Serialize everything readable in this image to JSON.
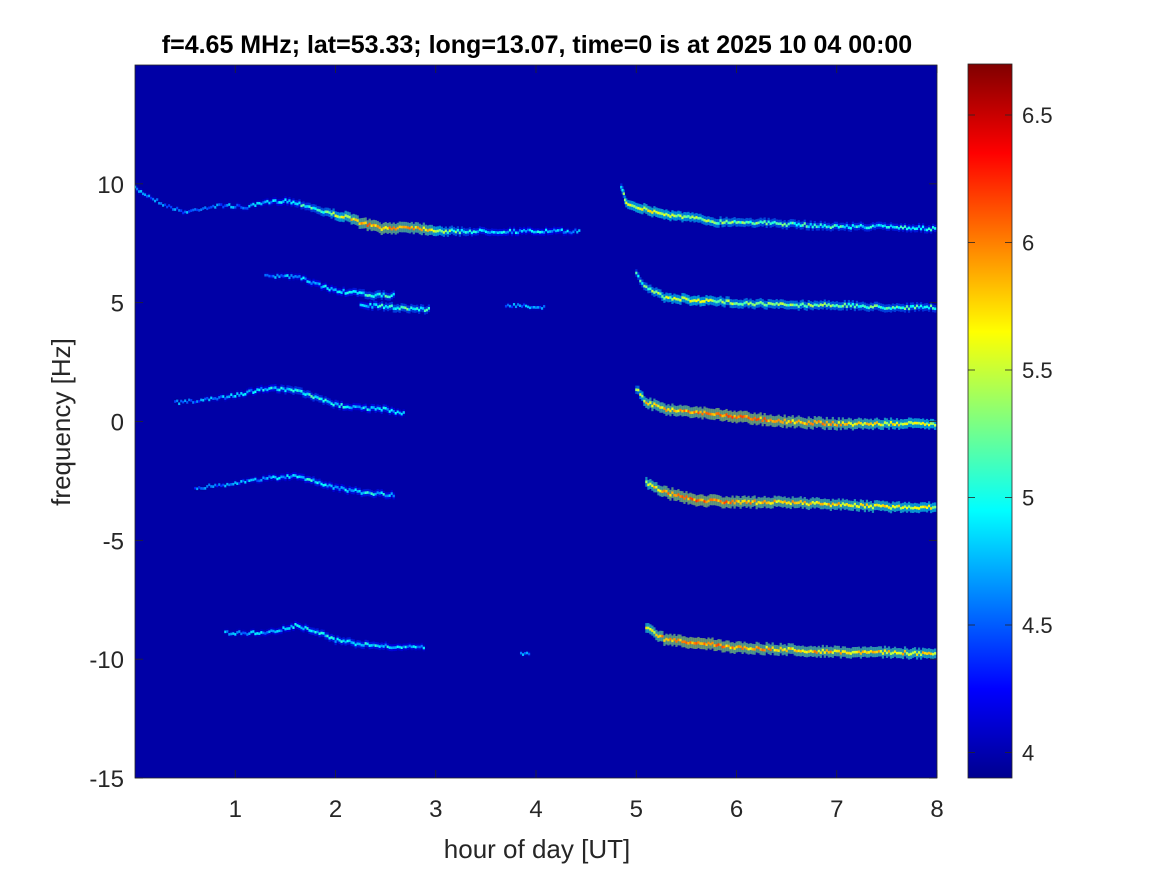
{
  "chart_data": {
    "type": "heatmap",
    "title": "f=4.65 MHz;  lat=53.33; long=13.07, time=0 is at 2025 10 04 00:00",
    "xlabel": "hour of day [UT]",
    "ylabel": "frequency [Hz]",
    "xlim": [
      0,
      8
    ],
    "ylim": [
      -15,
      15
    ],
    "xticks": [
      1,
      2,
      3,
      4,
      5,
      6,
      7,
      8
    ],
    "yticks": [
      -15,
      -10,
      -5,
      0,
      5,
      10
    ],
    "colorbar": {
      "clim": [
        3.9,
        6.7
      ],
      "ticks": [
        4,
        4.5,
        5,
        5.5,
        6,
        6.5
      ],
      "colormap": "jet",
      "background_level": 3.95,
      "background_color": "#0000a6"
    },
    "grid": false,
    "traces": [
      {
        "name": "upper trace",
        "points": [
          [
            0.0,
            9.8,
            4.7
          ],
          [
            0.3,
            9.1,
            4.5
          ],
          [
            0.5,
            8.8,
            4.6
          ],
          [
            0.7,
            9.0,
            4.5
          ],
          [
            0.9,
            9.1,
            4.6
          ],
          [
            1.1,
            9.0,
            4.6
          ],
          [
            1.3,
            9.2,
            4.7
          ],
          [
            1.5,
            9.3,
            4.8
          ],
          [
            1.7,
            9.1,
            5.0
          ],
          [
            1.9,
            8.8,
            5.2
          ],
          [
            2.1,
            8.6,
            5.6
          ],
          [
            2.3,
            8.3,
            5.9
          ],
          [
            2.5,
            8.1,
            5.9
          ],
          [
            2.7,
            8.2,
            5.8
          ],
          [
            2.9,
            8.1,
            5.8
          ],
          [
            3.1,
            8.0,
            5.3
          ],
          [
            3.4,
            8.0,
            4.9
          ],
          [
            3.8,
            8.0,
            4.8
          ],
          [
            4.2,
            8.0,
            4.8
          ],
          [
            4.45,
            8.0,
            4.6
          ]
        ]
      },
      {
        "name": "upper trace (post 05 UT)",
        "points": [
          [
            4.85,
            9.9,
            5.0
          ],
          [
            4.9,
            9.2,
            5.4
          ],
          [
            5.1,
            8.9,
            5.6
          ],
          [
            5.3,
            8.7,
            5.5
          ],
          [
            5.5,
            8.6,
            5.4
          ],
          [
            5.8,
            8.4,
            5.3
          ],
          [
            6.1,
            8.4,
            5.2
          ],
          [
            6.5,
            8.3,
            5.1
          ],
          [
            7.0,
            8.2,
            5.0
          ],
          [
            7.5,
            8.2,
            4.9
          ],
          [
            8.0,
            8.1,
            4.9
          ]
        ]
      },
      {
        "name": "5 Hz trace",
        "points": [
          [
            1.3,
            6.1,
            4.6
          ],
          [
            1.6,
            6.1,
            4.7
          ],
          [
            1.8,
            5.8,
            4.8
          ],
          [
            2.0,
            5.5,
            4.8
          ],
          [
            2.2,
            5.4,
            4.9
          ],
          [
            2.4,
            5.3,
            5.1
          ],
          [
            2.6,
            5.3,
            4.9
          ]
        ]
      },
      {
        "name": "5 Hz lower branch",
        "points": [
          [
            2.25,
            4.9,
            4.8
          ],
          [
            2.6,
            4.8,
            5.1
          ],
          [
            2.95,
            4.7,
            5.0
          ]
        ]
      },
      {
        "name": "5 Hz fragment",
        "points": [
          [
            3.7,
            4.9,
            4.6
          ],
          [
            4.1,
            4.8,
            4.6
          ]
        ]
      },
      {
        "name": "5 Hz trace (post 05 UT)",
        "points": [
          [
            5.0,
            6.2,
            5.0
          ],
          [
            5.1,
            5.6,
            5.2
          ],
          [
            5.3,
            5.2,
            5.4
          ],
          [
            5.6,
            5.1,
            5.5
          ],
          [
            6.0,
            5.0,
            5.3
          ],
          [
            6.5,
            4.9,
            5.3
          ],
          [
            7.0,
            4.9,
            5.2
          ],
          [
            7.5,
            4.8,
            5.1
          ],
          [
            8.0,
            4.8,
            5.0
          ]
        ]
      },
      {
        "name": "0 Hz trace",
        "points": [
          [
            0.4,
            0.8,
            4.5
          ],
          [
            0.7,
            0.9,
            4.6
          ],
          [
            1.0,
            1.1,
            4.7
          ],
          [
            1.3,
            1.4,
            4.8
          ],
          [
            1.6,
            1.3,
            5.0
          ],
          [
            1.8,
            1.0,
            5.0
          ],
          [
            2.0,
            0.7,
            4.9
          ],
          [
            2.2,
            0.6,
            4.8
          ],
          [
            2.5,
            0.5,
            4.9
          ],
          [
            2.7,
            0.3,
            4.7
          ]
        ]
      },
      {
        "name": "0 Hz trace (post 05 UT)",
        "points": [
          [
            5.0,
            1.4,
            5.2
          ],
          [
            5.1,
            0.8,
            5.7
          ],
          [
            5.3,
            0.5,
            5.8
          ],
          [
            5.6,
            0.4,
            5.9
          ],
          [
            6.0,
            0.2,
            6.0
          ],
          [
            6.5,
            0.0,
            5.9
          ],
          [
            7.0,
            -0.1,
            5.8
          ],
          [
            7.5,
            -0.1,
            5.6
          ],
          [
            8.0,
            -0.1,
            5.5
          ]
        ]
      },
      {
        "name": "-3 Hz trace",
        "points": [
          [
            0.6,
            -2.8,
            4.5
          ],
          [
            1.0,
            -2.6,
            4.6
          ],
          [
            1.3,
            -2.4,
            4.7
          ],
          [
            1.6,
            -2.3,
            4.8
          ],
          [
            1.8,
            -2.5,
            4.9
          ],
          [
            2.0,
            -2.8,
            4.8
          ],
          [
            2.3,
            -3.0,
            4.9
          ],
          [
            2.6,
            -3.1,
            4.8
          ]
        ]
      },
      {
        "name": "-3 Hz trace (post 05 UT)",
        "points": [
          [
            5.1,
            -2.6,
            5.6
          ],
          [
            5.3,
            -3.0,
            5.9
          ],
          [
            5.6,
            -3.3,
            6.0
          ],
          [
            6.0,
            -3.4,
            5.9
          ],
          [
            6.5,
            -3.4,
            5.8
          ],
          [
            7.0,
            -3.5,
            5.7
          ],
          [
            7.5,
            -3.6,
            5.6
          ],
          [
            8.0,
            -3.6,
            5.5
          ]
        ]
      },
      {
        "name": "-9 Hz trace",
        "points": [
          [
            0.9,
            -8.9,
            4.6
          ],
          [
            1.3,
            -8.9,
            4.7
          ],
          [
            1.6,
            -8.6,
            4.8
          ],
          [
            1.8,
            -8.8,
            4.9
          ],
          [
            2.0,
            -9.2,
            4.9
          ],
          [
            2.3,
            -9.4,
            4.9
          ],
          [
            2.6,
            -9.5,
            4.8
          ],
          [
            2.9,
            -9.5,
            4.7
          ]
        ]
      },
      {
        "name": "-10 Hz fragment",
        "points": [
          [
            3.85,
            -9.8,
            4.6
          ],
          [
            3.95,
            -9.8,
            4.6
          ]
        ]
      },
      {
        "name": "-9 Hz trace (post 05 UT)",
        "points": [
          [
            5.1,
            -8.7,
            5.6
          ],
          [
            5.3,
            -9.2,
            5.9
          ],
          [
            5.6,
            -9.3,
            6.0
          ],
          [
            6.0,
            -9.5,
            5.9
          ],
          [
            6.5,
            -9.6,
            5.8
          ],
          [
            7.0,
            -9.7,
            5.8
          ],
          [
            7.5,
            -9.7,
            5.7
          ],
          [
            8.0,
            -9.8,
            5.6
          ]
        ]
      }
    ]
  }
}
